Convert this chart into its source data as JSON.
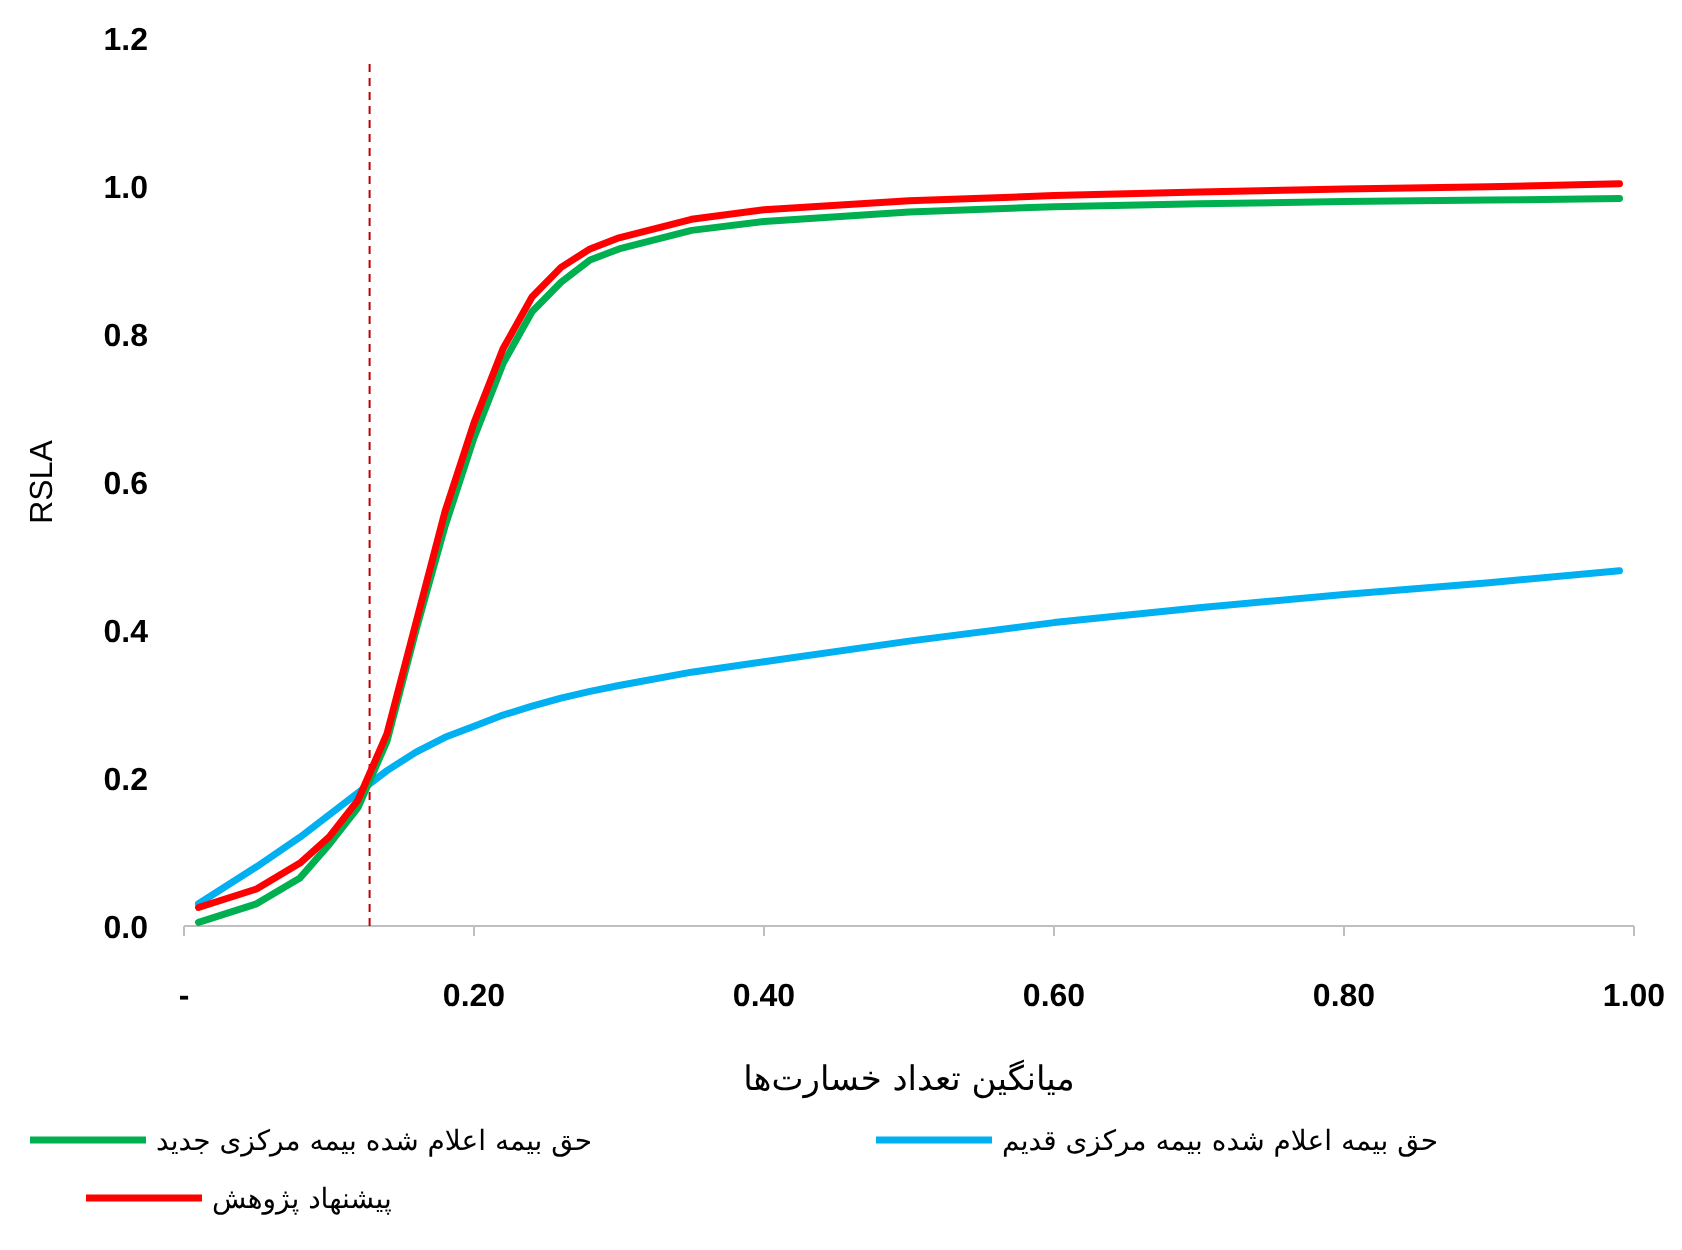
{
  "chart_data": {
    "type": "line",
    "xlabel": "میانگین تعداد خسارت‌ها",
    "ylabel": "RSLA",
    "xlim": [
      0,
      1
    ],
    "ylim": [
      0,
      1.2
    ],
    "xticks": [
      {
        "value": 0,
        "label": "-"
      },
      {
        "value": 0.2,
        "label": "0.20"
      },
      {
        "value": 0.4,
        "label": "0.40"
      },
      {
        "value": 0.6,
        "label": "0.60"
      },
      {
        "value": 0.8,
        "label": "0.80"
      },
      {
        "value": 1,
        "label": "1.00"
      }
    ],
    "yticks": [
      {
        "value": 0,
        "label": "0.0"
      },
      {
        "value": 0.2,
        "label": "0.2"
      },
      {
        "value": 0.4,
        "label": "0.4"
      },
      {
        "value": 0.6,
        "label": "0.6"
      },
      {
        "value": 0.8,
        "label": "0.8"
      },
      {
        "value": 1,
        "label": "1.0"
      },
      {
        "value": 1.2,
        "label": "1.2"
      }
    ],
    "x": [
      0.01,
      0.05,
      0.08,
      0.1,
      0.12,
      0.14,
      0.16,
      0.18,
      0.2,
      0.22,
      0.24,
      0.26,
      0.28,
      0.3,
      0.35,
      0.4,
      0.5,
      0.6,
      0.7,
      0.8,
      0.9,
      0.99
    ],
    "series": [
      {
        "name": "حق بیمه اعلام شده بیمه مرکزی قدیم",
        "color": "#00b0f0",
        "values": [
          0.03,
          0.08,
          0.12,
          0.15,
          0.18,
          0.21,
          0.235,
          0.255,
          0.27,
          0.285,
          0.297,
          0.308,
          0.317,
          0.325,
          0.343,
          0.357,
          0.385,
          0.41,
          0.43,
          0.448,
          0.464,
          0.48
        ]
      },
      {
        "name": "حق بیمه اعلام شده بیمه مرکزی جدید",
        "color": "#00b050",
        "values": [
          0.005,
          0.03,
          0.065,
          0.11,
          0.16,
          0.25,
          0.4,
          0.54,
          0.66,
          0.76,
          0.83,
          0.87,
          0.9,
          0.915,
          0.94,
          0.952,
          0.965,
          0.972,
          0.976,
          0.979,
          0.981,
          0.983
        ]
      },
      {
        "name": "پیشنهاد پژوهش",
        "color": "#ff0000",
        "values": [
          0.025,
          0.05,
          0.085,
          0.12,
          0.17,
          0.26,
          0.41,
          0.56,
          0.68,
          0.78,
          0.85,
          0.89,
          0.915,
          0.93,
          0.955,
          0.968,
          0.98,
          0.987,
          0.992,
          0.996,
          0.999,
          1.003
        ]
      }
    ],
    "ref_lines": [
      {
        "axis": "x",
        "value": 0.128,
        "color": "#c00000",
        "line_style": "dashed"
      }
    ],
    "legend": "bottom",
    "marker": "none",
    "line_style": "solid",
    "grid": false
  }
}
